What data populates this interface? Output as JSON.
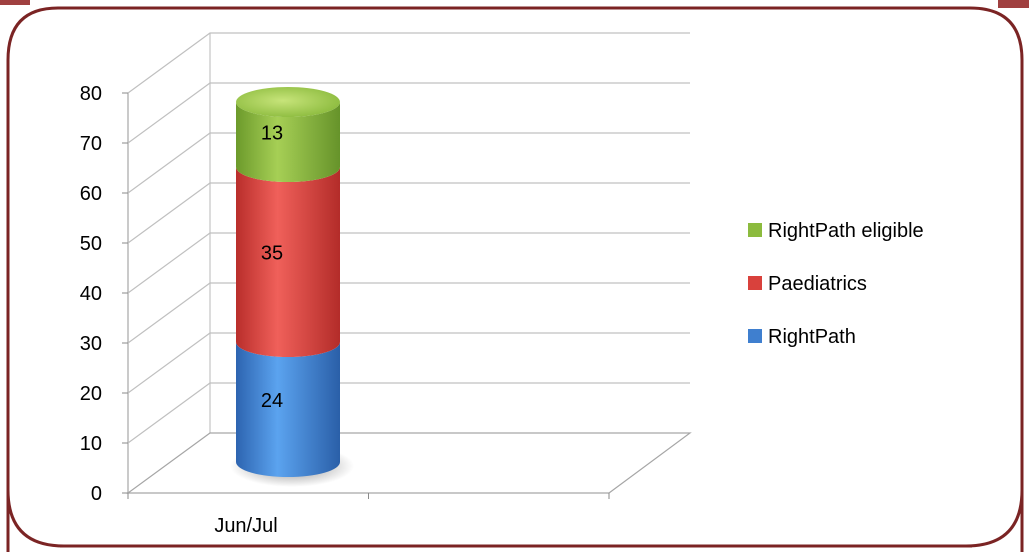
{
  "chart_data": {
    "type": "bar",
    "stacked": true,
    "style": "3d-cylinder",
    "categories": [
      "Jun/Jul"
    ],
    "series": [
      {
        "name": "RightPath",
        "values": [
          24
        ],
        "color": "#3f7fcf"
      },
      {
        "name": "Paediatrics",
        "values": [
          35
        ],
        "color": "#d9413c"
      },
      {
        "name": "RightPath eligible",
        "values": [
          13
        ],
        "color": "#8cbb3e"
      }
    ],
    "ylim": [
      0,
      80
    ],
    "yticks": [
      "0",
      "10",
      "20",
      "30",
      "40",
      "50",
      "60",
      "70",
      "80"
    ],
    "grid": true,
    "legend": "right",
    "legend_order": [
      "RightPath eligible",
      "Paediatrics",
      "RightPath"
    ]
  },
  "colors": {
    "frame": "#7b2424",
    "grid": "#bfbfbf",
    "wall_line": "#a6a6a6"
  }
}
